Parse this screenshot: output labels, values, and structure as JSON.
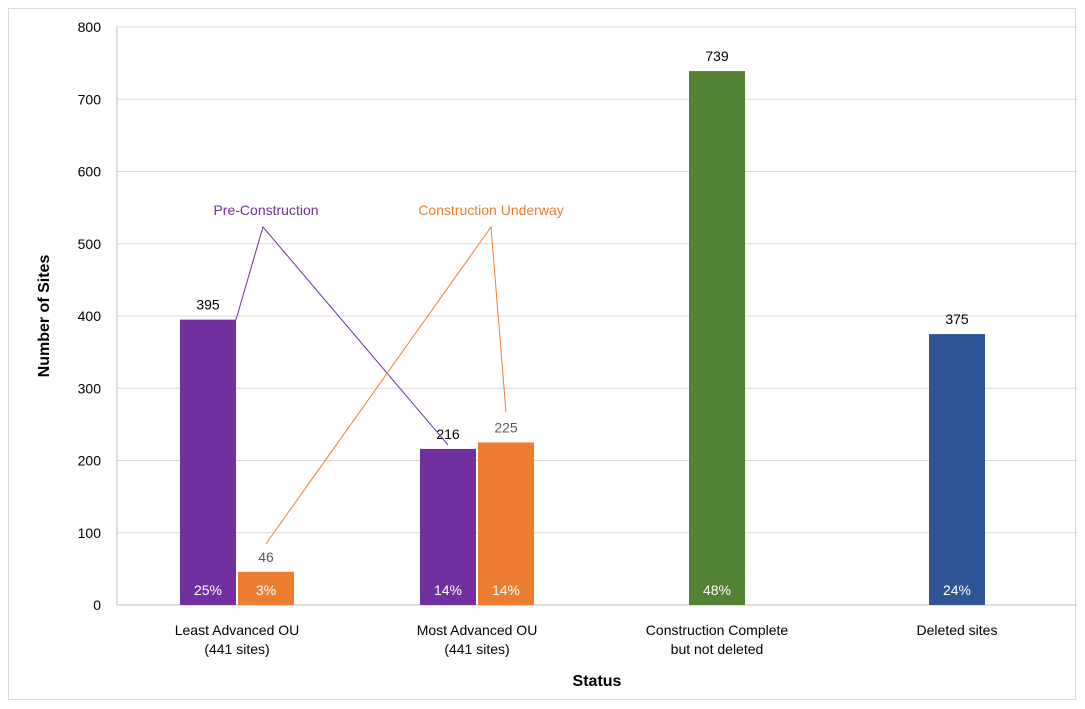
{
  "chart_data": {
    "type": "bar",
    "xlabel": "Status",
    "ylabel": "Number of Sites",
    "ylim": [
      0,
      800
    ],
    "yticks": [
      0,
      100,
      200,
      300,
      400,
      500,
      600,
      700,
      800
    ],
    "grid": true,
    "categories": [
      {
        "lines": [
          "Least Advanced OU",
          "(441 sites)"
        ]
      },
      {
        "lines": [
          "Most Advanced OU",
          "(441 sites)"
        ]
      },
      {
        "lines": [
          "Construction Complete",
          "but not deleted"
        ]
      },
      {
        "lines": [
          "Deleted sites"
        ]
      }
    ],
    "bars": [
      {
        "category": 0,
        "series": "Pre-Construction",
        "value": 395,
        "percent": "25%",
        "color": "#7030a0",
        "label_color": "#000000"
      },
      {
        "category": 0,
        "series": "Construction Underway",
        "value": 46,
        "percent": "3%",
        "color": "#ed7d31",
        "label_color": "#595959"
      },
      {
        "category": 1,
        "series": "Pre-Construction",
        "value": 216,
        "percent": "14%",
        "color": "#7030a0",
        "label_color": "#000000"
      },
      {
        "category": 1,
        "series": "Construction Underway",
        "value": 225,
        "percent": "14%",
        "color": "#ed7d31",
        "label_color": "#595959"
      },
      {
        "category": 2,
        "series": "",
        "value": 739,
        "percent": "48%",
        "color": "#548235",
        "label_color": "#000000"
      },
      {
        "category": 3,
        "series": "",
        "value": 375,
        "percent": "24%",
        "color": "#2f5597",
        "label_color": "#000000"
      }
    ],
    "annotations": [
      {
        "text": "Pre-Construction",
        "color": "#7030a0",
        "points_to_bars": [
          0,
          2
        ]
      },
      {
        "text": "Construction Underway",
        "color": "#ed7d31",
        "points_to_bars": [
          1,
          3
        ]
      }
    ]
  }
}
